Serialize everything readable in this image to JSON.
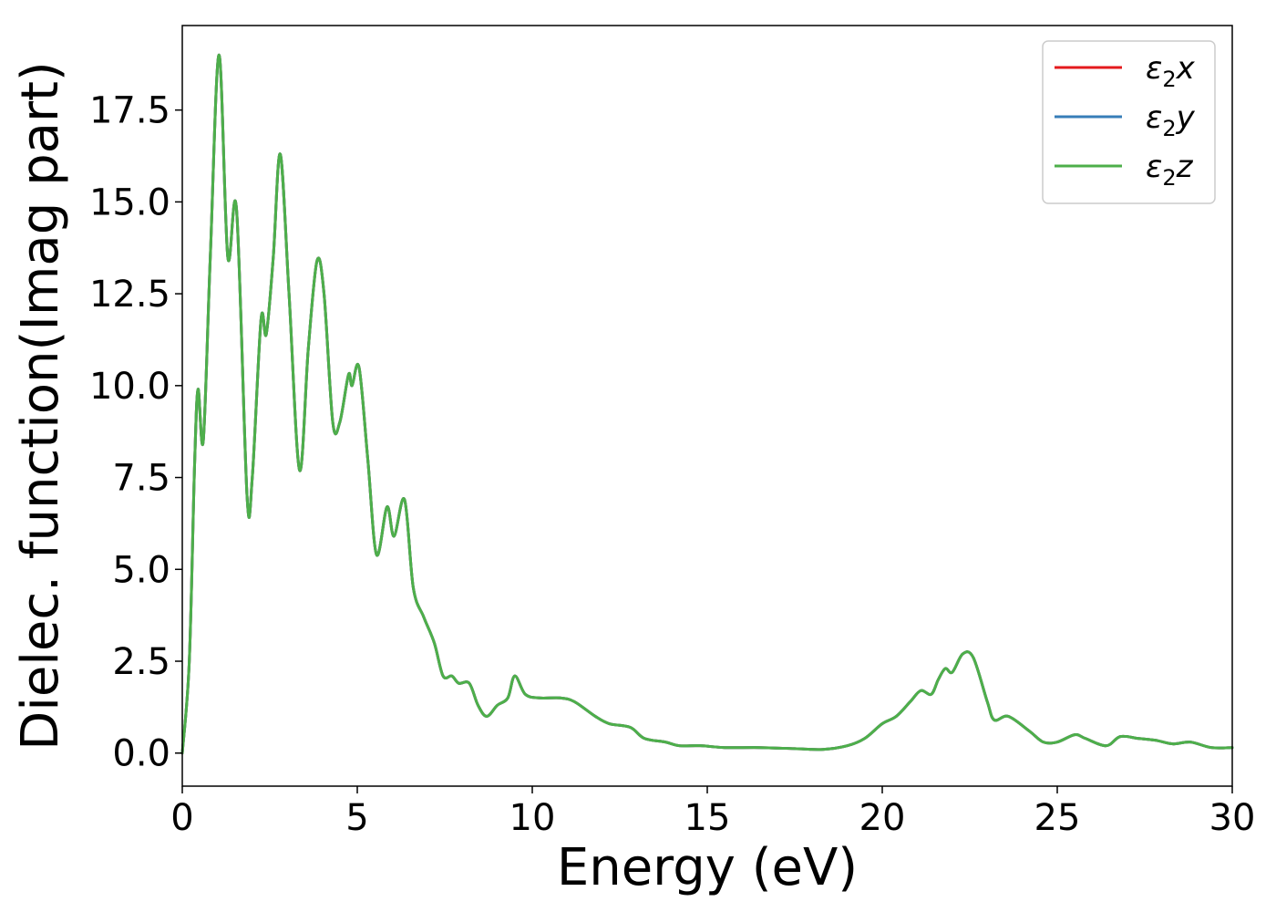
{
  "chart_data": {
    "type": "line",
    "title": "",
    "xlabel": "Energy (eV)",
    "ylabel": "Dielec. function(Imag part)",
    "xlim": [
      0,
      30
    ],
    "ylim": [
      -0.9,
      19.8
    ],
    "xticks": [
      0,
      5,
      10,
      15,
      20,
      25,
      30
    ],
    "xtick_labels": [
      "0",
      "5",
      "10",
      "15",
      "20",
      "25",
      "30"
    ],
    "yticks": [
      0.0,
      2.5,
      5.0,
      7.5,
      10.0,
      12.5,
      15.0,
      17.5
    ],
    "ytick_labels": [
      "0.0",
      "2.5",
      "5.0",
      "7.5",
      "10.0",
      "12.5",
      "15.0",
      "17.5"
    ],
    "grid": false,
    "legend_position": "top-right",
    "legend": [
      {
        "name": "ε2x",
        "base": "ε",
        "sub": "2",
        "var": "x",
        "color": "#e41a1c"
      },
      {
        "name": "ε2y",
        "base": "ε",
        "sub": "2",
        "var": "y",
        "color": "#377eb8"
      },
      {
        "name": "ε2z",
        "base": "ε",
        "sub": "2",
        "var": "z",
        "color": "#4daf4a"
      }
    ],
    "series": [
      {
        "name": "ε2x",
        "color": "#e41a1c",
        "x": [
          0,
          0.2,
          0.35,
          0.45,
          0.6,
          0.8,
          1.05,
          1.3,
          1.55,
          1.85,
          2.0,
          2.25,
          2.4,
          2.6,
          2.8,
          3.05,
          3.35,
          3.6,
          3.85,
          4.05,
          4.3,
          4.5,
          4.75,
          4.85,
          5.05,
          5.3,
          5.55,
          5.85,
          6.05,
          6.35,
          6.6,
          6.9,
          7.2,
          7.45,
          7.7,
          7.9,
          8.2,
          8.45,
          8.7,
          9.0,
          9.3,
          9.5,
          9.8,
          10.2,
          10.8,
          11.2,
          11.8,
          12.2,
          12.8,
          13.2,
          13.8,
          14.2,
          14.8,
          15.5,
          16.5,
          17.5,
          18.3,
          19.0,
          19.5,
          20.0,
          20.4,
          20.8,
          21.1,
          21.4,
          21.6,
          21.8,
          22.0,
          22.3,
          22.6,
          23.0,
          23.2,
          23.6,
          24.2,
          24.6,
          25.0,
          25.5,
          25.8,
          26.4,
          26.8,
          27.3,
          27.8,
          28.3,
          28.8,
          29.4,
          30.0
        ],
        "y": [
          0.0,
          2.5,
          7.8,
          9.9,
          8.5,
          13.5,
          19.0,
          13.5,
          14.8,
          7.0,
          7.5,
          11.8,
          11.4,
          13.5,
          16.3,
          12.5,
          7.7,
          11.0,
          13.4,
          12.5,
          9.0,
          9.0,
          10.3,
          10.0,
          10.5,
          8.0,
          5.4,
          6.7,
          5.9,
          6.9,
          4.5,
          3.7,
          3.0,
          2.1,
          2.1,
          1.9,
          1.9,
          1.3,
          1.0,
          1.3,
          1.5,
          2.1,
          1.6,
          1.5,
          1.5,
          1.4,
          1.0,
          0.8,
          0.7,
          0.4,
          0.3,
          0.2,
          0.2,
          0.15,
          0.15,
          0.12,
          0.1,
          0.2,
          0.4,
          0.8,
          1.0,
          1.4,
          1.7,
          1.6,
          2.0,
          2.3,
          2.2,
          2.7,
          2.6,
          1.4,
          0.9,
          1.0,
          0.6,
          0.3,
          0.3,
          0.5,
          0.4,
          0.2,
          0.45,
          0.4,
          0.35,
          0.25,
          0.3,
          0.15,
          0.15
        ]
      },
      {
        "name": "ε2y",
        "color": "#377eb8",
        "x": [
          0,
          0.2,
          0.35,
          0.45,
          0.6,
          0.8,
          1.05,
          1.3,
          1.55,
          1.85,
          2.0,
          2.25,
          2.4,
          2.6,
          2.8,
          3.05,
          3.35,
          3.6,
          3.85,
          4.05,
          4.3,
          4.5,
          4.75,
          4.85,
          5.05,
          5.3,
          5.55,
          5.85,
          6.05,
          6.35,
          6.6,
          6.9,
          7.2,
          7.45,
          7.7,
          7.9,
          8.2,
          8.45,
          8.7,
          9.0,
          9.3,
          9.5,
          9.8,
          10.2,
          10.8,
          11.2,
          11.8,
          12.2,
          12.8,
          13.2,
          13.8,
          14.2,
          14.8,
          15.5,
          16.5,
          17.5,
          18.3,
          19.0,
          19.5,
          20.0,
          20.4,
          20.8,
          21.1,
          21.4,
          21.6,
          21.8,
          22.0,
          22.3,
          22.6,
          23.0,
          23.2,
          23.6,
          24.2,
          24.6,
          25.0,
          25.5,
          25.8,
          26.4,
          26.8,
          27.3,
          27.8,
          28.3,
          28.8,
          29.4,
          30.0
        ],
        "y": [
          0.0,
          2.5,
          7.8,
          9.9,
          8.5,
          13.5,
          19.0,
          13.5,
          14.8,
          7.0,
          7.5,
          11.8,
          11.4,
          13.5,
          16.3,
          12.5,
          7.7,
          11.0,
          13.4,
          12.5,
          9.0,
          9.0,
          10.3,
          10.0,
          10.5,
          8.0,
          5.4,
          6.7,
          5.9,
          6.9,
          4.5,
          3.7,
          3.0,
          2.1,
          2.1,
          1.9,
          1.9,
          1.3,
          1.0,
          1.3,
          1.5,
          2.1,
          1.6,
          1.5,
          1.5,
          1.4,
          1.0,
          0.8,
          0.7,
          0.4,
          0.3,
          0.2,
          0.2,
          0.15,
          0.15,
          0.12,
          0.1,
          0.2,
          0.4,
          0.8,
          1.0,
          1.4,
          1.7,
          1.6,
          2.0,
          2.3,
          2.2,
          2.7,
          2.6,
          1.4,
          0.9,
          1.0,
          0.6,
          0.3,
          0.3,
          0.5,
          0.4,
          0.2,
          0.45,
          0.4,
          0.35,
          0.25,
          0.3,
          0.15,
          0.15
        ]
      },
      {
        "name": "ε2z",
        "color": "#4daf4a",
        "x": [
          0,
          0.2,
          0.35,
          0.45,
          0.6,
          0.8,
          1.05,
          1.3,
          1.55,
          1.85,
          2.0,
          2.25,
          2.4,
          2.6,
          2.8,
          3.05,
          3.35,
          3.6,
          3.85,
          4.05,
          4.3,
          4.5,
          4.75,
          4.85,
          5.05,
          5.3,
          5.55,
          5.85,
          6.05,
          6.35,
          6.6,
          6.9,
          7.2,
          7.45,
          7.7,
          7.9,
          8.2,
          8.45,
          8.7,
          9.0,
          9.3,
          9.5,
          9.8,
          10.2,
          10.8,
          11.2,
          11.8,
          12.2,
          12.8,
          13.2,
          13.8,
          14.2,
          14.8,
          15.5,
          16.5,
          17.5,
          18.3,
          19.0,
          19.5,
          20.0,
          20.4,
          20.8,
          21.1,
          21.4,
          21.6,
          21.8,
          22.0,
          22.3,
          22.6,
          23.0,
          23.2,
          23.6,
          24.2,
          24.6,
          25.0,
          25.5,
          25.8,
          26.4,
          26.8,
          27.3,
          27.8,
          28.3,
          28.8,
          29.4,
          30.0
        ],
        "y": [
          0.0,
          2.5,
          7.8,
          9.9,
          8.5,
          13.5,
          19.0,
          13.5,
          14.8,
          7.0,
          7.5,
          11.8,
          11.4,
          13.5,
          16.3,
          12.5,
          7.7,
          11.0,
          13.4,
          12.5,
          9.0,
          9.0,
          10.3,
          10.0,
          10.5,
          8.0,
          5.4,
          6.7,
          5.9,
          6.9,
          4.5,
          3.7,
          3.0,
          2.1,
          2.1,
          1.9,
          1.9,
          1.3,
          1.0,
          1.3,
          1.5,
          2.1,
          1.6,
          1.5,
          1.5,
          1.4,
          1.0,
          0.8,
          0.7,
          0.4,
          0.3,
          0.2,
          0.2,
          0.15,
          0.15,
          0.12,
          0.1,
          0.2,
          0.4,
          0.8,
          1.0,
          1.4,
          1.7,
          1.6,
          2.0,
          2.3,
          2.2,
          2.7,
          2.6,
          1.4,
          0.9,
          1.0,
          0.6,
          0.3,
          0.3,
          0.5,
          0.4,
          0.2,
          0.45,
          0.4,
          0.35,
          0.25,
          0.3,
          0.15,
          0.15
        ]
      }
    ]
  }
}
